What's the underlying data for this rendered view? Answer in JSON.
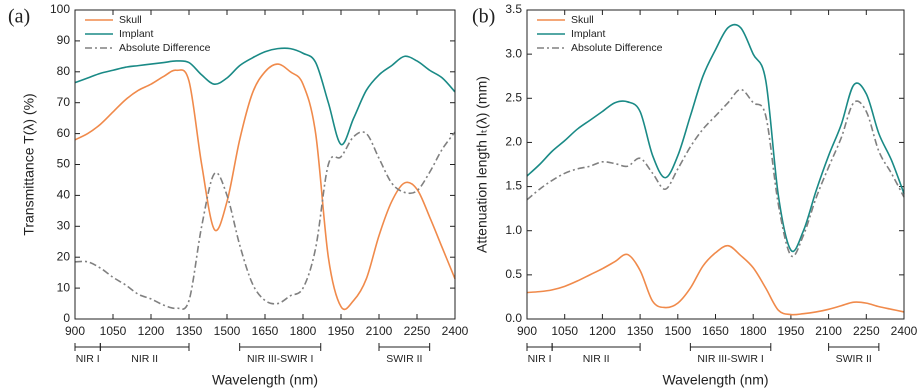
{
  "chart_data": [
    {
      "type": "line",
      "panel_label": "(a)",
      "xlabel": "Wavelength (nm)",
      "ylabel": "Transmittance T(λ) (%)",
      "legend": "upper left",
      "x": [
        900,
        950,
        1000,
        1050,
        1100,
        1150,
        1200,
        1250,
        1300,
        1350,
        1400,
        1450,
        1500,
        1550,
        1600,
        1650,
        1700,
        1750,
        1800,
        1850,
        1900,
        1950,
        2000,
        2050,
        2100,
        2150,
        2200,
        2250,
        2300,
        2350,
        2400
      ],
      "series": [
        {
          "name": "Skull",
          "color": "#f08a4b",
          "dash": "solid",
          "values": [
            58,
            60,
            63,
            67,
            71,
            74,
            76,
            78.5,
            80.5,
            77,
            50,
            29,
            38,
            58,
            73,
            80,
            82.5,
            80,
            76,
            60,
            20,
            4,
            6,
            13,
            27,
            38,
            44,
            42,
            33,
            23,
            13
          ]
        },
        {
          "name": "Implant",
          "color": "#1a8a86",
          "dash": "solid",
          "values": [
            76.5,
            78,
            79.5,
            80.5,
            81.5,
            82,
            82.5,
            83,
            83.5,
            83,
            79,
            76,
            78,
            82,
            84.5,
            86.5,
            87.5,
            87.5,
            86,
            83,
            70,
            56.5,
            65,
            74,
            79,
            82,
            85,
            83.5,
            80.5,
            78,
            73.5
          ]
        },
        {
          "name": "Absolute Difference",
          "color": "#808080",
          "dash": "dashdot",
          "values": [
            18.5,
            18.5,
            16.5,
            13.5,
            11,
            8,
            6.5,
            4.5,
            3.5,
            6,
            30,
            47,
            40,
            24,
            11.5,
            6,
            5,
            7.5,
            10,
            23,
            50,
            52.5,
            59,
            60,
            52,
            44,
            41,
            41.5,
            47.5,
            55,
            60.5
          ]
        }
      ],
      "xlim": [
        900,
        2400
      ],
      "xticks": [
        900,
        1050,
        1200,
        1350,
        1500,
        1650,
        1800,
        1950,
        2100,
        2250,
        2400
      ],
      "ylim": [
        0,
        100
      ],
      "yticks": [
        0,
        10,
        20,
        30,
        40,
        50,
        60,
        70,
        80,
        90,
        100
      ],
      "bands": [
        {
          "label": "NIR I",
          "range": [
            900,
            1000
          ]
        },
        {
          "label": "NIR II",
          "range": [
            1000,
            1350
          ]
        },
        {
          "label": "NIR III-SWIR I",
          "range": [
            1550,
            1870
          ]
        },
        {
          "label": "SWIR II",
          "range": [
            2100,
            2300
          ]
        }
      ]
    },
    {
      "type": "line",
      "panel_label": "(b)",
      "xlabel": "Wavelength (nm)",
      "ylabel": "Attenuation length lₜ(λ) (mm)",
      "legend": "upper left",
      "x": [
        900,
        950,
        1000,
        1050,
        1100,
        1150,
        1200,
        1250,
        1300,
        1350,
        1400,
        1450,
        1500,
        1550,
        1600,
        1650,
        1700,
        1750,
        1800,
        1850,
        1900,
        1950,
        2000,
        2050,
        2100,
        2150,
        2200,
        2250,
        2300,
        2350,
        2400
      ],
      "series": [
        {
          "name": "Skull",
          "color": "#f08a4b",
          "dash": "solid",
          "values": [
            0.3,
            0.31,
            0.33,
            0.37,
            0.43,
            0.5,
            0.57,
            0.65,
            0.73,
            0.55,
            0.2,
            0.13,
            0.18,
            0.35,
            0.6,
            0.75,
            0.83,
            0.72,
            0.58,
            0.35,
            0.1,
            0.05,
            0.06,
            0.08,
            0.11,
            0.15,
            0.19,
            0.18,
            0.14,
            0.11,
            0.08
          ]
        },
        {
          "name": "Implant",
          "color": "#1a8a86",
          "dash": "solid",
          "values": [
            1.62,
            1.75,
            1.9,
            2.02,
            2.15,
            2.25,
            2.35,
            2.45,
            2.46,
            2.35,
            1.85,
            1.6,
            1.85,
            2.3,
            2.75,
            3.05,
            3.3,
            3.3,
            3.0,
            2.7,
            1.4,
            0.78,
            1.0,
            1.45,
            1.85,
            2.2,
            2.65,
            2.55,
            2.1,
            1.8,
            1.42
          ]
        },
        {
          "name": "Absolute Difference",
          "color": "#808080",
          "dash": "dashdot",
          "values": [
            1.35,
            1.47,
            1.57,
            1.65,
            1.7,
            1.73,
            1.78,
            1.76,
            1.73,
            1.82,
            1.65,
            1.47,
            1.7,
            1.95,
            2.15,
            2.3,
            2.45,
            2.6,
            2.45,
            2.3,
            1.3,
            0.72,
            0.95,
            1.37,
            1.72,
            2.05,
            2.45,
            2.35,
            1.9,
            1.65,
            1.38
          ]
        }
      ],
      "xlim": [
        900,
        2400
      ],
      "xticks": [
        900,
        1050,
        1200,
        1350,
        1500,
        1650,
        1800,
        1950,
        2100,
        2250,
        2400
      ],
      "ylim": [
        0,
        3.5
      ],
      "yticks": [
        {
          "value": 0,
          "label": "0.0"
        },
        0.5,
        {
          "value": 1,
          "label": "1.0"
        },
        1.5,
        {
          "value": 2,
          "label": "2.0"
        },
        2.5,
        {
          "value": 3,
          "label": "3.0"
        },
        3.5
      ],
      "bands": [
        {
          "label": "NIR I",
          "range": [
            900,
            1000
          ]
        },
        {
          "label": "NIR II",
          "range": [
            1000,
            1350
          ]
        },
        {
          "label": "NIR III-SWIR I",
          "range": [
            1550,
            1870
          ]
        },
        {
          "label": "SWIR II",
          "range": [
            2100,
            2300
          ]
        }
      ]
    }
  ]
}
